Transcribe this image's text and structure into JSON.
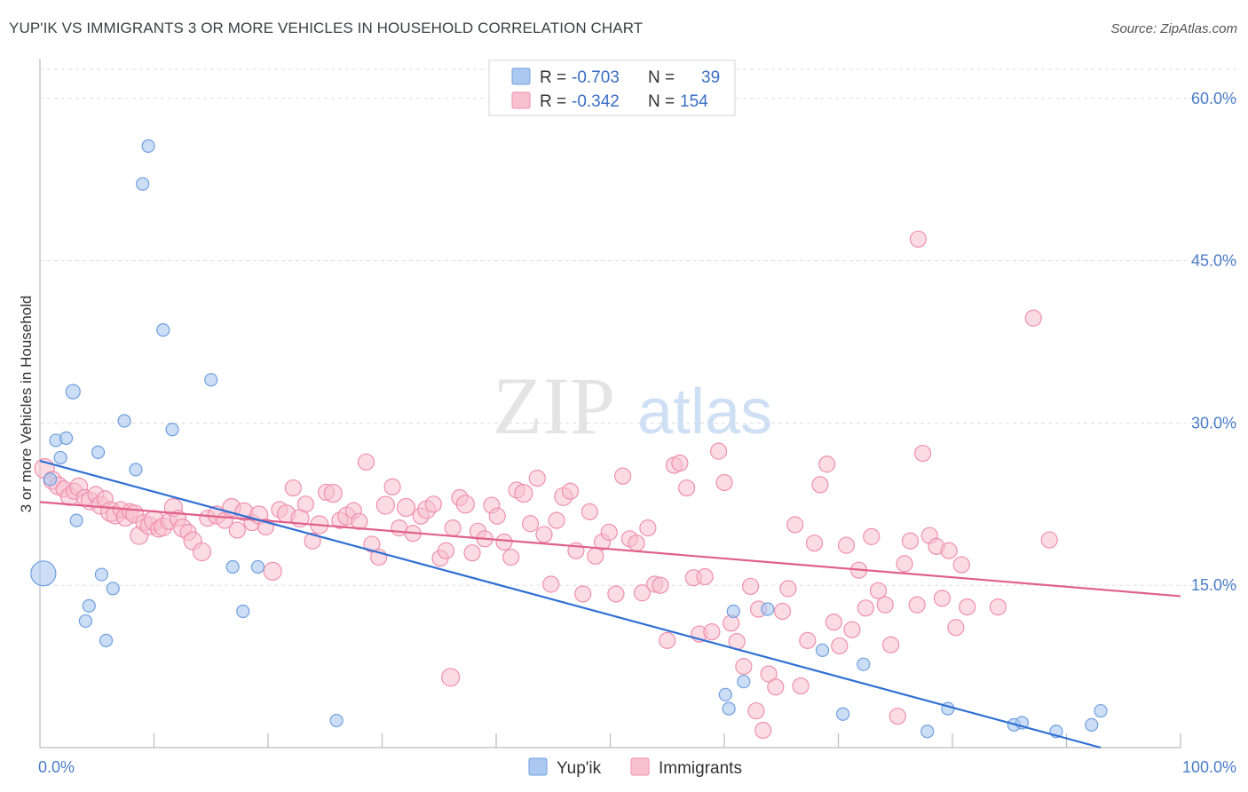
{
  "title": "YUP'IK VS IMMIGRANTS 3 OR MORE VEHICLES IN HOUSEHOLD CORRELATION CHART",
  "source": "Source: ZipAtlas.com",
  "watermark": {
    "zip": "ZIP",
    "atlas": "atlas"
  },
  "legend": {
    "rows": [
      {
        "r_label": "R =",
        "r_value": "-0.703",
        "n_label": "N =",
        "n_value": "39",
        "color": "#aac8f0",
        "stroke": "#6f9fe0"
      },
      {
        "r_label": "R =",
        "r_value": "-0.342",
        "n_label": "N =",
        "n_value": "154",
        "color": "#f8c0d0",
        "stroke": "#ef8fab"
      }
    ]
  },
  "bottom_legend": {
    "series1": "Yup'ik",
    "series2": "Immigrants"
  },
  "chart_data": {
    "type": "scatter",
    "title": "YUP'IK VS IMMIGRANTS 3 OR MORE VEHICLES IN HOUSEHOLD CORRELATION CHART",
    "xlabel": "",
    "ylabel": "3 or more Vehicles in Household",
    "xlim": [
      0,
      100
    ],
    "ylim": [
      0,
      60
    ],
    "x_tick_labels": [
      "0.0%",
      "100.0%"
    ],
    "y_ticks": [
      15,
      30,
      45,
      60
    ],
    "y_tick_labels": [
      "15.0%",
      "30.0%",
      "45.0%",
      "60.0%"
    ],
    "grid": true,
    "legend_position": "top-center",
    "series": [
      {
        "name": "Yup'ik",
        "color": "#aac8f0",
        "stroke": "#6f9fe0",
        "line_color": "#2f6fd4",
        "trend": {
          "x": [
            0,
            93
          ],
          "y": [
            26.5,
            0
          ]
        },
        "points": [
          [
            0.3,
            16.1,
            28
          ],
          [
            0.9,
            24.8,
            14
          ],
          [
            1.4,
            28.4,
            14
          ],
          [
            2.3,
            28.6,
            14
          ],
          [
            1.8,
            26.8,
            14
          ],
          [
            2.9,
            32.9,
            16
          ],
          [
            3.2,
            21.0,
            14
          ],
          [
            4.0,
            11.7,
            14
          ],
          [
            4.3,
            13.1,
            14
          ],
          [
            5.1,
            27.3,
            14
          ],
          [
            5.4,
            16.0,
            14
          ],
          [
            5.8,
            9.9,
            14
          ],
          [
            6.4,
            14.7,
            14
          ],
          [
            7.4,
            30.2,
            14
          ],
          [
            8.4,
            25.7,
            14
          ],
          [
            9.0,
            52.1,
            14
          ],
          [
            9.5,
            55.6,
            14
          ],
          [
            10.8,
            38.6,
            14
          ],
          [
            11.6,
            29.4,
            14
          ],
          [
            15.0,
            34.0,
            14
          ],
          [
            16.9,
            16.7,
            14
          ],
          [
            17.8,
            12.6,
            14
          ],
          [
            19.1,
            16.7,
            14
          ],
          [
            26.0,
            2.5,
            14
          ],
          [
            60.8,
            12.6,
            14
          ],
          [
            60.1,
            4.9,
            14
          ],
          [
            60.4,
            3.6,
            14
          ],
          [
            61.7,
            6.1,
            14
          ],
          [
            63.8,
            12.8,
            14
          ],
          [
            68.6,
            9.0,
            14
          ],
          [
            70.4,
            3.1,
            14
          ],
          [
            72.2,
            7.7,
            14
          ],
          [
            77.8,
            1.5,
            14
          ],
          [
            79.6,
            3.6,
            14
          ],
          [
            85.4,
            2.1,
            14
          ],
          [
            86.1,
            2.3,
            14
          ],
          [
            89.1,
            1.5,
            14
          ],
          [
            92.2,
            2.1,
            14
          ],
          [
            93.0,
            3.4,
            14
          ]
        ]
      },
      {
        "name": "Immigrants",
        "color": "#f8c0d0",
        "stroke": "#ef8fab",
        "line_color": "#e0608a",
        "trend": {
          "x": [
            0,
            100
          ],
          "y": [
            22.7,
            14.0
          ]
        },
        "points": [
          [
            0.4,
            25.8,
            18
          ],
          [
            1.1,
            24.7,
            16
          ],
          [
            1.6,
            24.2,
            16
          ],
          [
            2.1,
            23.9,
            14
          ],
          [
            2.6,
            23.2,
            16
          ],
          [
            3.0,
            23.7,
            14
          ],
          [
            3.4,
            24.1,
            16
          ],
          [
            3.9,
            23.1,
            14
          ],
          [
            4.4,
            22.8,
            16
          ],
          [
            4.9,
            23.4,
            14
          ],
          [
            5.3,
            22.4,
            16
          ],
          [
            5.7,
            23.0,
            14
          ],
          [
            6.2,
            21.8,
            18
          ],
          [
            6.6,
            21.5,
            16
          ],
          [
            7.1,
            22.0,
            14
          ],
          [
            7.5,
            21.3,
            16
          ],
          [
            7.9,
            21.8,
            14
          ],
          [
            8.3,
            21.6,
            16
          ],
          [
            8.7,
            19.6,
            16
          ],
          [
            9.1,
            20.8,
            14
          ],
          [
            9.6,
            20.5,
            16
          ],
          [
            10.0,
            21.0,
            18
          ],
          [
            10.4,
            20.2,
            14
          ],
          [
            10.8,
            20.4,
            16
          ],
          [
            11.3,
            20.9,
            14
          ],
          [
            11.7,
            22.2,
            16
          ],
          [
            12.1,
            21.2,
            14
          ],
          [
            12.5,
            20.3,
            16
          ],
          [
            13.0,
            19.9,
            14
          ],
          [
            13.4,
            19.1,
            16
          ],
          [
            14.2,
            18.1,
            16
          ],
          [
            14.7,
            21.2,
            14
          ],
          [
            15.5,
            21.5,
            16
          ],
          [
            16.2,
            21.0,
            14
          ],
          [
            16.8,
            22.2,
            16
          ],
          [
            17.3,
            20.1,
            14
          ],
          [
            17.9,
            21.8,
            16
          ],
          [
            18.6,
            20.8,
            14
          ],
          [
            19.2,
            21.5,
            16
          ],
          [
            19.8,
            20.4,
            14
          ],
          [
            20.4,
            16.3,
            16
          ],
          [
            21.0,
            22.0,
            14
          ],
          [
            21.6,
            21.6,
            16
          ],
          [
            22.2,
            24.0,
            14
          ],
          [
            22.8,
            21.2,
            16
          ],
          [
            23.3,
            22.5,
            14
          ],
          [
            23.9,
            19.1,
            14
          ],
          [
            24.5,
            20.6,
            16
          ],
          [
            25.1,
            23.6,
            14
          ],
          [
            25.7,
            23.5,
            16
          ],
          [
            26.3,
            21.0,
            14
          ],
          [
            26.9,
            21.4,
            16
          ],
          [
            27.5,
            21.9,
            14
          ],
          [
            28.0,
            20.9,
            14
          ],
          [
            28.6,
            26.4,
            14
          ],
          [
            29.1,
            18.8,
            14
          ],
          [
            29.7,
            17.6,
            14
          ],
          [
            30.3,
            22.4,
            16
          ],
          [
            30.9,
            24.1,
            14
          ],
          [
            31.5,
            20.3,
            14
          ],
          [
            32.1,
            22.2,
            16
          ],
          [
            32.7,
            19.8,
            14
          ],
          [
            33.4,
            21.4,
            14
          ],
          [
            33.9,
            22.0,
            16
          ],
          [
            34.5,
            22.5,
            14
          ],
          [
            35.1,
            17.5,
            14
          ],
          [
            35.6,
            18.2,
            14
          ],
          [
            36.2,
            20.3,
            14
          ],
          [
            36.8,
            23.1,
            14
          ],
          [
            37.3,
            22.5,
            16
          ],
          [
            37.9,
            18.0,
            14
          ],
          [
            38.4,
            20.0,
            14
          ],
          [
            39.0,
            19.3,
            14
          ],
          [
            39.6,
            22.4,
            14
          ],
          [
            40.1,
            21.4,
            14
          ],
          [
            40.7,
            19.0,
            14
          ],
          [
            41.3,
            17.6,
            14
          ],
          [
            41.8,
            23.8,
            14
          ],
          [
            42.4,
            23.5,
            16
          ],
          [
            43.0,
            20.7,
            14
          ],
          [
            43.6,
            24.9,
            14
          ],
          [
            44.2,
            19.7,
            14
          ],
          [
            44.8,
            15.1,
            14
          ],
          [
            45.3,
            21.0,
            14
          ],
          [
            45.9,
            23.2,
            16
          ],
          [
            46.5,
            23.7,
            14
          ],
          [
            47.0,
            18.2,
            14
          ],
          [
            47.6,
            14.2,
            14
          ],
          [
            48.2,
            21.8,
            14
          ],
          [
            48.7,
            17.7,
            14
          ],
          [
            49.3,
            19.0,
            14
          ],
          [
            49.9,
            19.9,
            14
          ],
          [
            50.5,
            14.2,
            14
          ],
          [
            51.1,
            25.1,
            14
          ],
          [
            51.7,
            19.3,
            14
          ],
          [
            52.3,
            18.9,
            14
          ],
          [
            52.8,
            14.3,
            14
          ],
          [
            53.3,
            20.3,
            14
          ],
          [
            53.9,
            15.1,
            14
          ],
          [
            54.4,
            15.0,
            14
          ],
          [
            55.0,
            9.9,
            14
          ],
          [
            55.6,
            26.1,
            14
          ],
          [
            56.1,
            26.3,
            14
          ],
          [
            56.7,
            24.0,
            14
          ],
          [
            57.3,
            15.7,
            14
          ],
          [
            57.8,
            10.5,
            14
          ],
          [
            58.3,
            15.8,
            14
          ],
          [
            58.9,
            10.7,
            14
          ],
          [
            59.5,
            27.4,
            14
          ],
          [
            60.0,
            24.5,
            14
          ],
          [
            60.6,
            11.5,
            14
          ],
          [
            61.1,
            9.8,
            14
          ],
          [
            61.7,
            7.5,
            14
          ],
          [
            62.3,
            14.9,
            14
          ],
          [
            62.8,
            3.4,
            14
          ],
          [
            63.4,
            1.6,
            14
          ],
          [
            63.9,
            6.8,
            14
          ],
          [
            64.5,
            5.6,
            14
          ],
          [
            65.1,
            12.6,
            14
          ],
          [
            65.6,
            14.7,
            14
          ],
          [
            66.2,
            20.6,
            14
          ],
          [
            66.7,
            5.7,
            14
          ],
          [
            67.3,
            9.9,
            14
          ],
          [
            67.9,
            18.9,
            14
          ],
          [
            68.4,
            24.3,
            14
          ],
          [
            69.0,
            26.2,
            14
          ],
          [
            69.6,
            11.6,
            14
          ],
          [
            70.1,
            9.4,
            14
          ],
          [
            70.7,
            18.7,
            14
          ],
          [
            71.2,
            10.9,
            14
          ],
          [
            71.8,
            16.4,
            14
          ],
          [
            72.4,
            12.9,
            14
          ],
          [
            72.9,
            19.5,
            14
          ],
          [
            73.5,
            14.5,
            14
          ],
          [
            74.1,
            13.2,
            14
          ],
          [
            74.6,
            9.5,
            14
          ],
          [
            75.2,
            2.9,
            14
          ],
          [
            75.8,
            17.0,
            14
          ],
          [
            76.3,
            19.1,
            14
          ],
          [
            76.9,
            13.2,
            14
          ],
          [
            77.4,
            27.2,
            14
          ],
          [
            78.0,
            19.6,
            14
          ],
          [
            78.6,
            18.6,
            14
          ],
          [
            79.1,
            13.8,
            14
          ],
          [
            79.7,
            18.2,
            14
          ],
          [
            80.3,
            11.1,
            14
          ],
          [
            80.8,
            16.9,
            14
          ],
          [
            81.3,
            13.0,
            14
          ],
          [
            77.0,
            47.0,
            14
          ],
          [
            87.1,
            39.7,
            14
          ],
          [
            88.5,
            19.2,
            14
          ],
          [
            36.0,
            6.5,
            16
          ],
          [
            63.0,
            12.8,
            14
          ],
          [
            84.0,
            13.0,
            14
          ]
        ]
      }
    ]
  }
}
